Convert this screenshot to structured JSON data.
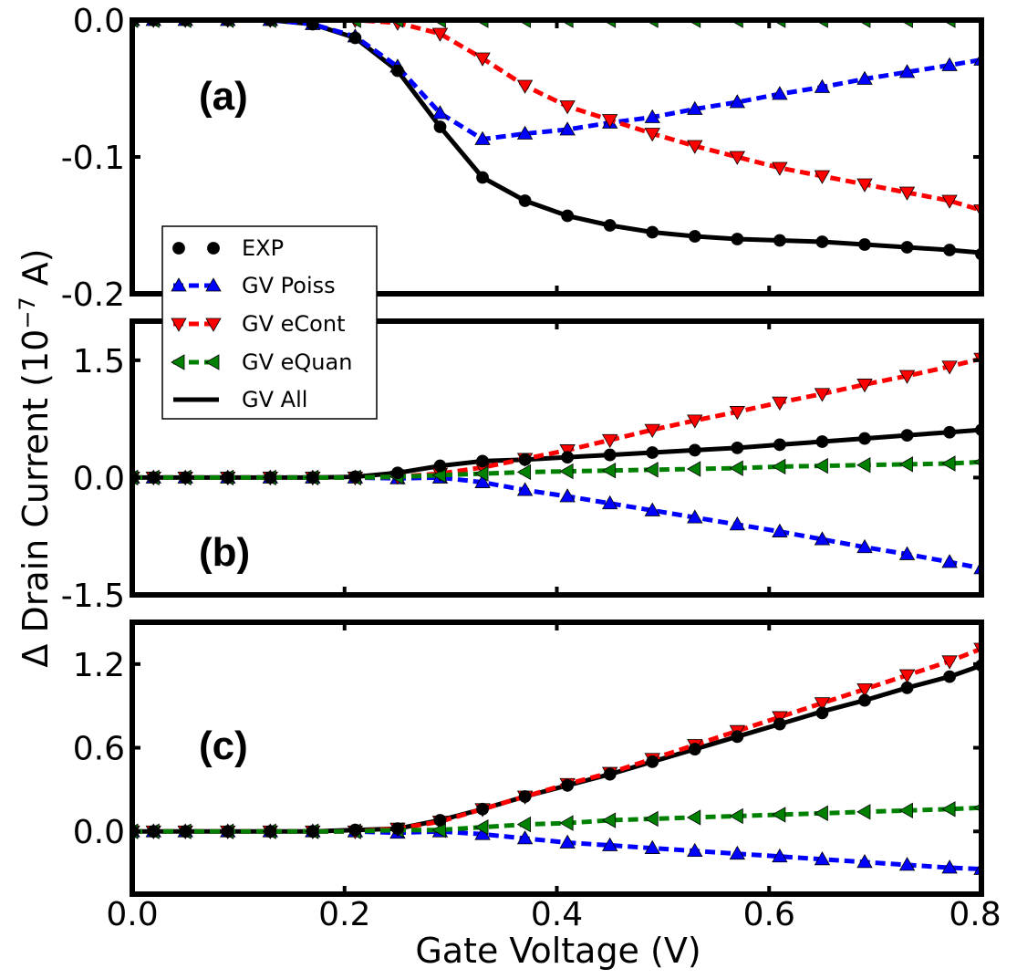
{
  "chart_data": {
    "type": "line",
    "xlabel": "Gate Voltage (V)",
    "ylabel_main": "Δ Drain Current (10",
    "ylabel_exp": "−7",
    "ylabel_unit": " A)",
    "xlim": [
      0.0,
      0.8
    ],
    "xticks": [
      0.0,
      0.2,
      0.4,
      0.6,
      0.8
    ],
    "xtick_labels": [
      "0.0",
      "0.2",
      "0.4",
      "0.6",
      "0.8"
    ],
    "x": [
      0.0,
      0.02,
      0.05,
      0.09,
      0.13,
      0.17,
      0.21,
      0.25,
      0.29,
      0.33,
      0.37,
      0.41,
      0.45,
      0.49,
      0.53,
      0.57,
      0.61,
      0.65,
      0.69,
      0.73,
      0.77,
      0.8
    ],
    "legend": {
      "position": "left",
      "entries": [
        {
          "label": "EXP",
          "series": "exp"
        },
        {
          "label": "GV Poiss",
          "series": "poiss"
        },
        {
          "label": "GV eCont",
          "series": "econt"
        },
        {
          "label": "GV eQuan",
          "series": "equan"
        },
        {
          "label": "GV All",
          "series": "all"
        }
      ]
    },
    "series_styles": {
      "exp": {
        "color": "#000000",
        "marker": "circle",
        "dash": "none",
        "line": false
      },
      "poiss": {
        "color": "#0000ff",
        "marker": "triangle-up",
        "dash": "dashed",
        "line": true
      },
      "econt": {
        "color": "#ff0000",
        "marker": "triangle-down",
        "dash": "dashed",
        "line": true
      },
      "equan": {
        "color": "#008000",
        "marker": "triangle-left",
        "dash": "dashed",
        "line": true
      },
      "all": {
        "color": "#000000",
        "marker": "none",
        "dash": "solid",
        "line": true
      }
    },
    "panels": [
      {
        "tag": "(a)",
        "ylim": [
          -0.2,
          0.0
        ],
        "yticks": [
          0.0,
          -0.1,
          -0.2
        ],
        "ytick_labels": [
          "0.0",
          "-0.1",
          "-0.2"
        ],
        "series": {
          "exp": [
            0,
            0,
            0,
            0,
            0,
            -0.003,
            -0.013,
            -0.037,
            -0.078,
            -0.115,
            -0.132,
            -0.143,
            -0.15,
            -0.155,
            -0.158,
            -0.16,
            -0.161,
            -0.162,
            -0.164,
            -0.166,
            -0.168,
            -0.171
          ],
          "all": [
            0,
            0,
            0,
            0,
            0,
            -0.003,
            -0.013,
            -0.037,
            -0.078,
            -0.115,
            -0.132,
            -0.143,
            -0.15,
            -0.155,
            -0.158,
            -0.16,
            -0.161,
            -0.162,
            -0.164,
            -0.166,
            -0.168,
            -0.17
          ],
          "poiss": [
            0,
            0,
            0,
            0,
            0,
            -0.003,
            -0.012,
            -0.034,
            -0.068,
            -0.087,
            -0.083,
            -0.08,
            -0.075,
            -0.071,
            -0.065,
            -0.06,
            -0.054,
            -0.049,
            -0.043,
            -0.038,
            -0.033,
            -0.029
          ],
          "econt": [
            0,
            0,
            0,
            0,
            0,
            0,
            0,
            -0.002,
            -0.01,
            -0.028,
            -0.048,
            -0.063,
            -0.073,
            -0.083,
            -0.092,
            -0.1,
            -0.108,
            -0.114,
            -0.12,
            -0.126,
            -0.132,
            -0.139
          ],
          "equan": [
            0,
            0,
            0,
            0,
            0,
            0,
            0,
            0,
            0,
            0,
            0,
            0,
            0,
            0,
            0,
            0,
            0,
            0,
            0,
            0,
            0,
            0
          ]
        }
      },
      {
        "tag": "(b)",
        "ylim": [
          -1.5,
          2.0
        ],
        "yticks": [
          1.5,
          0.0,
          -1.5
        ],
        "ytick_labels": [
          "1.5",
          "0.0",
          "-1.5"
        ],
        "series": {
          "exp": [
            0,
            0,
            0,
            0,
            0,
            0,
            0.01,
            0.06,
            0.15,
            0.21,
            0.23,
            0.26,
            0.29,
            0.32,
            0.35,
            0.38,
            0.42,
            0.46,
            0.5,
            0.54,
            0.58,
            0.61
          ],
          "all": [
            0,
            0,
            0,
            0,
            0,
            0,
            0.01,
            0.06,
            0.15,
            0.21,
            0.23,
            0.26,
            0.29,
            0.32,
            0.35,
            0.38,
            0.42,
            0.46,
            0.5,
            0.54,
            0.58,
            0.61
          ],
          "poiss": [
            0,
            0,
            0,
            0,
            0,
            0,
            0,
            -0.01,
            0.0,
            -0.06,
            -0.16,
            -0.24,
            -0.33,
            -0.42,
            -0.51,
            -0.6,
            -0.69,
            -0.79,
            -0.89,
            -0.98,
            -1.08,
            -1.16
          ],
          "econt": [
            0,
            0,
            0,
            0,
            0,
            0,
            0,
            0.01,
            0.05,
            0.13,
            0.24,
            0.35,
            0.48,
            0.61,
            0.73,
            0.84,
            0.96,
            1.07,
            1.19,
            1.3,
            1.42,
            1.52
          ],
          "equan": [
            0,
            0,
            0,
            0,
            0,
            0,
            0,
            0.01,
            0.03,
            0.05,
            0.07,
            0.08,
            0.09,
            0.1,
            0.11,
            0.12,
            0.14,
            0.15,
            0.16,
            0.17,
            0.18,
            0.2
          ]
        }
      },
      {
        "tag": "(c)",
        "ylim": [
          -0.45,
          1.5
        ],
        "yticks": [
          1.2,
          0.6,
          0.0
        ],
        "ytick_labels": [
          "1.2",
          "0.6",
          "0.0"
        ],
        "series": {
          "exp": [
            0,
            0,
            0,
            0,
            0,
            0,
            0.01,
            0.02,
            0.08,
            0.16,
            0.25,
            0.33,
            0.41,
            0.5,
            0.59,
            0.68,
            0.77,
            0.85,
            0.94,
            1.03,
            1.11,
            1.19
          ],
          "all": [
            0,
            0,
            0,
            0,
            0,
            0,
            0.01,
            0.02,
            0.08,
            0.16,
            0.25,
            0.33,
            0.41,
            0.5,
            0.59,
            0.68,
            0.77,
            0.86,
            0.94,
            1.03,
            1.11,
            1.19
          ],
          "poiss": [
            0,
            0,
            0,
            0,
            0,
            0,
            0,
            -0.01,
            0.0,
            -0.02,
            -0.05,
            -0.08,
            -0.1,
            -0.12,
            -0.14,
            -0.16,
            -0.18,
            -0.2,
            -0.22,
            -0.24,
            -0.26,
            -0.27
          ],
          "econt": [
            0,
            0,
            0,
            0,
            0,
            0,
            0,
            0.02,
            0.07,
            0.16,
            0.25,
            0.34,
            0.42,
            0.52,
            0.62,
            0.72,
            0.82,
            0.92,
            1.02,
            1.12,
            1.22,
            1.31
          ],
          "equan": [
            0,
            0,
            0,
            0,
            0,
            0,
            0,
            0.01,
            0.01,
            0.03,
            0.05,
            0.06,
            0.08,
            0.09,
            0.1,
            0.11,
            0.12,
            0.13,
            0.14,
            0.15,
            0.16,
            0.17
          ]
        }
      }
    ]
  }
}
